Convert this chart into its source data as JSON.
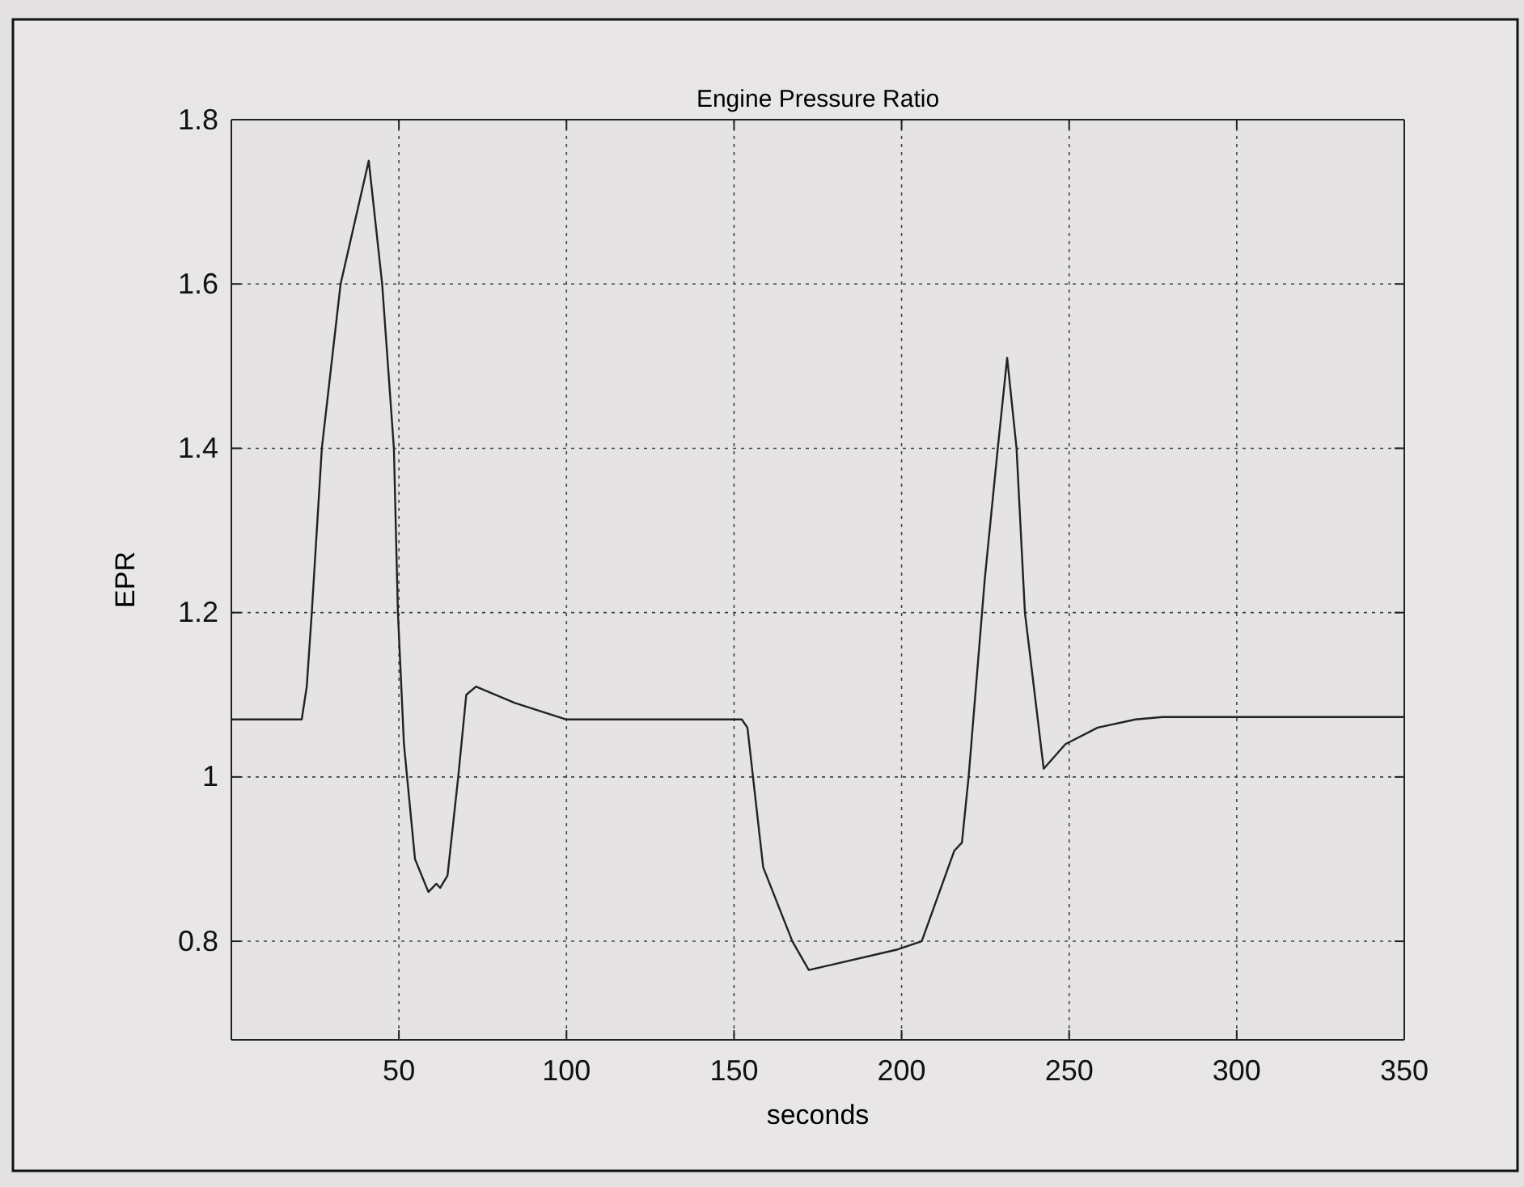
{
  "chart_data": {
    "type": "line",
    "title": "Engine Pressure Ratio",
    "xlabel": "seconds",
    "ylabel": "EPR",
    "x": [
      0,
      10,
      21,
      22.5,
      24,
      27,
      32.6,
      41,
      45,
      48.5,
      49.7,
      51.5,
      54.8,
      58.8,
      61.2,
      62.3,
      64.5,
      67.7,
      70.1,
      73,
      84.6,
      99.8,
      152.3,
      154,
      158.7,
      167.4,
      172.3,
      177.6,
      198.8,
      206,
      215.7,
      218,
      220,
      224.8,
      228.7,
      231.5,
      234.3,
      236.8,
      242.4,
      248.9,
      258.5,
      269.8,
      277.9,
      350
    ],
    "series": [
      {
        "color": "#222222",
        "values": [
          1.07,
          1.07,
          1.07,
          1.11,
          1.2,
          1.4,
          1.6,
          1.75,
          1.6,
          1.4,
          1.2,
          1.04,
          0.9,
          0.86,
          0.87,
          0.865,
          0.88,
          1.0,
          1.1,
          1.11,
          1.09,
          1.07,
          1.07,
          1.06,
          0.89,
          0.8,
          0.765,
          0.77,
          0.79,
          0.8,
          0.91,
          0.92,
          1.0,
          1.24,
          1.4,
          1.51,
          1.4,
          1.2,
          1.01,
          1.04,
          1.06,
          1.07,
          1.073,
          1.073
        ]
      }
    ],
    "xlim": [
      0,
      350
    ],
    "xticks": [
      50,
      100,
      150,
      200,
      250,
      300,
      350
    ],
    "ylim": [
      0.68,
      1.8
    ],
    "yticks": [
      0.8,
      1,
      1.2,
      1.4,
      1.6,
      1.8
    ],
    "grid": true,
    "line_style": "solid",
    "marker": "none"
  }
}
